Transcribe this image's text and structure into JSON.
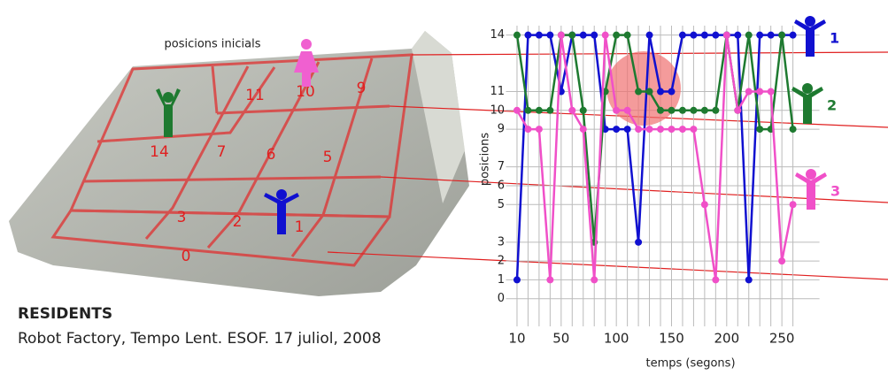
{
  "photo": {
    "caption": "posicions inicials",
    "zones": [
      "11",
      "10",
      "9",
      "14",
      "7",
      "6",
      "5",
      "3",
      "2",
      "1",
      "0"
    ]
  },
  "title": "RESIDENTS",
  "subtitle": "Robot Factory, Tempo Lent. ESOF. 17 juliol, 2008",
  "chart_data": {
    "type": "line",
    "x_label": "temps (segons)",
    "y_label": "posicions",
    "x": [
      10,
      20,
      30,
      40,
      50,
      60,
      70,
      80,
      90,
      100,
      110,
      120,
      130,
      140,
      150,
      160,
      170,
      180,
      190,
      200,
      210,
      220,
      230,
      240,
      250,
      260
    ],
    "xlim": [
      0,
      290
    ],
    "xticks": [
      10,
      50,
      100,
      150,
      200,
      250
    ],
    "ylim": [
      -1,
      14.5
    ],
    "yticks": [
      0,
      1,
      2,
      3,
      5,
      6,
      7,
      9,
      10,
      11,
      14
    ],
    "grid": true,
    "series": [
      {
        "name": "1",
        "color": "#1010d0",
        "values": [
          1,
          14,
          14,
          14,
          11,
          14,
          14,
          14,
          9,
          9,
          9,
          3,
          14,
          11,
          11,
          14,
          14,
          14,
          14,
          14,
          14,
          1,
          14,
          14,
          14,
          14
        ]
      },
      {
        "name": "2",
        "color": "#1e7a30",
        "values": [
          14,
          10,
          10,
          10,
          14,
          14,
          10,
          3,
          11,
          14,
          14,
          11,
          11,
          10,
          10,
          10,
          10,
          10,
          10,
          14,
          10,
          14,
          9,
          9,
          14,
          9
        ]
      },
      {
        "name": "3",
        "color": "#f050c8",
        "values": [
          10,
          9,
          9,
          1,
          14,
          10,
          9,
          1,
          14,
          10,
          10,
          9,
          9,
          9,
          9,
          9,
          9,
          5,
          1,
          14,
          10,
          11,
          11,
          11,
          2,
          5
        ]
      }
    ]
  }
}
